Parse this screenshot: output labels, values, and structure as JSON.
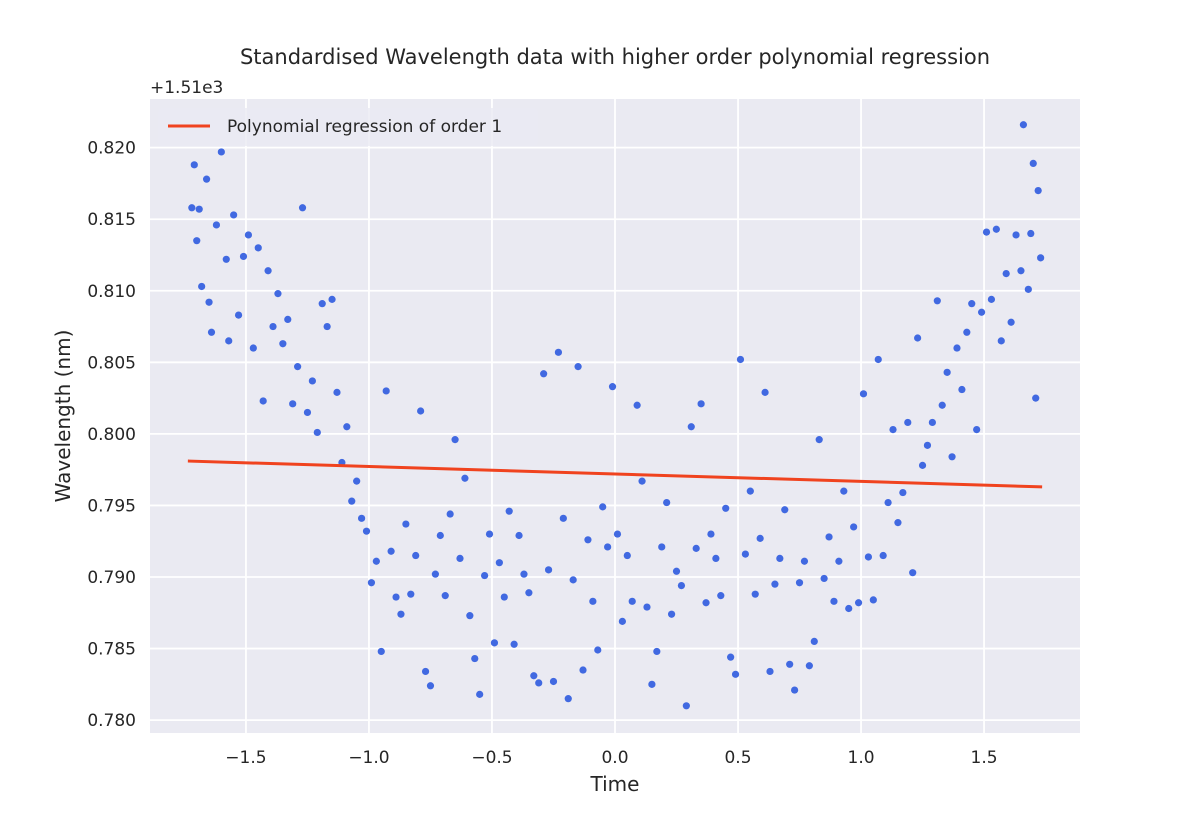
{
  "chart_data": {
    "type": "scatter",
    "title": "Standardised Wavelength data with higher order polynomial regression",
    "xlabel": "Time",
    "ylabel": "Wavelength (nm)",
    "y_offset_label": "+1.51e3",
    "xlim": [
      -1.89,
      1.89
    ],
    "ylim": [
      0.7791,
      0.8234
    ],
    "xticks": [
      -1.5,
      -1.0,
      -0.5,
      0.0,
      0.5,
      1.0,
      1.5
    ],
    "xtick_labels": [
      "−1.5",
      "−1.0",
      "−0.5",
      "0.0",
      "0.5",
      "1.0",
      "1.5"
    ],
    "yticks": [
      0.78,
      0.785,
      0.79,
      0.795,
      0.8,
      0.805,
      0.81,
      0.815,
      0.82
    ],
    "ytick_labels": [
      "0.780",
      "0.785",
      "0.790",
      "0.795",
      "0.800",
      "0.805",
      "0.810",
      "0.815",
      "0.820"
    ],
    "grid": true,
    "legend_position": "top-left",
    "series": [
      {
        "name": "",
        "kind": "scatter",
        "color": "#4169E1",
        "points": [
          [
            -1.72,
            0.8158
          ],
          [
            -1.71,
            0.8188
          ],
          [
            -1.7,
            0.8135
          ],
          [
            -1.69,
            0.8157
          ],
          [
            -1.68,
            0.8103
          ],
          [
            -1.66,
            0.8178
          ],
          [
            -1.65,
            0.8092
          ],
          [
            -1.64,
            0.8071
          ],
          [
            -1.62,
            0.8146
          ],
          [
            -1.6,
            0.8197
          ],
          [
            -1.58,
            0.8122
          ],
          [
            -1.57,
            0.8065
          ],
          [
            -1.55,
            0.8153
          ],
          [
            -1.53,
            0.8083
          ],
          [
            -1.51,
            0.8124
          ],
          [
            -1.49,
            0.8139
          ],
          [
            -1.47,
            0.806
          ],
          [
            -1.45,
            0.813
          ],
          [
            -1.43,
            0.8023
          ],
          [
            -1.41,
            0.8114
          ],
          [
            -1.39,
            0.8075
          ],
          [
            -1.37,
            0.8098
          ],
          [
            -1.35,
            0.8063
          ],
          [
            -1.33,
            0.808
          ],
          [
            -1.31,
            0.8021
          ],
          [
            -1.29,
            0.8047
          ],
          [
            -1.27,
            0.8158
          ],
          [
            -1.25,
            0.8015
          ],
          [
            -1.23,
            0.8037
          ],
          [
            -1.21,
            0.8001
          ],
          [
            -1.19,
            0.8091
          ],
          [
            -1.17,
            0.8075
          ],
          [
            -1.15,
            0.8094
          ],
          [
            -1.13,
            0.8029
          ],
          [
            -1.11,
            0.798
          ],
          [
            -1.09,
            0.8005
          ],
          [
            -1.07,
            0.7953
          ],
          [
            -1.05,
            0.7967
          ],
          [
            -1.03,
            0.7941
          ],
          [
            -1.01,
            0.7932
          ],
          [
            -0.99,
            0.7896
          ],
          [
            -0.97,
            0.7911
          ],
          [
            -0.95,
            0.7848
          ],
          [
            -0.93,
            0.803
          ],
          [
            -0.91,
            0.7918
          ],
          [
            -0.89,
            0.7886
          ],
          [
            -0.87,
            0.7874
          ],
          [
            -0.85,
            0.7937
          ],
          [
            -0.83,
            0.7888
          ],
          [
            -0.81,
            0.7915
          ],
          [
            -0.79,
            0.8016
          ],
          [
            -0.77,
            0.7834
          ],
          [
            -0.75,
            0.7824
          ],
          [
            -0.73,
            0.7902
          ],
          [
            -0.71,
            0.7929
          ],
          [
            -0.69,
            0.7887
          ],
          [
            -0.67,
            0.7944
          ],
          [
            -0.65,
            0.7996
          ],
          [
            -0.63,
            0.7913
          ],
          [
            -0.61,
            0.7969
          ],
          [
            -0.59,
            0.7873
          ],
          [
            -0.57,
            0.7843
          ],
          [
            -0.55,
            0.7818
          ],
          [
            -0.53,
            0.7901
          ],
          [
            -0.51,
            0.793
          ],
          [
            -0.49,
            0.7854
          ],
          [
            -0.47,
            0.791
          ],
          [
            -0.45,
            0.7886
          ],
          [
            -0.43,
            0.7946
          ],
          [
            -0.41,
            0.7853
          ],
          [
            -0.39,
            0.7929
          ],
          [
            -0.37,
            0.7902
          ],
          [
            -0.35,
            0.7889
          ],
          [
            -0.33,
            0.7831
          ],
          [
            -0.31,
            0.7826
          ],
          [
            -0.29,
            0.8042
          ],
          [
            -0.27,
            0.7905
          ],
          [
            -0.25,
            0.7827
          ],
          [
            -0.23,
            0.8057
          ],
          [
            -0.21,
            0.7941
          ],
          [
            -0.19,
            0.7815
          ],
          [
            -0.17,
            0.7898
          ],
          [
            -0.15,
            0.8047
          ],
          [
            -0.13,
            0.7835
          ],
          [
            -0.11,
            0.7926
          ],
          [
            -0.09,
            0.7883
          ],
          [
            -0.07,
            0.7849
          ],
          [
            -0.05,
            0.7949
          ],
          [
            -0.03,
            0.7921
          ],
          [
            -0.01,
            0.8033
          ],
          [
            0.01,
            0.793
          ],
          [
            0.03,
            0.7869
          ],
          [
            0.05,
            0.7915
          ],
          [
            0.07,
            0.7883
          ],
          [
            0.09,
            0.802
          ],
          [
            0.11,
            0.7967
          ],
          [
            0.13,
            0.7879
          ],
          [
            0.15,
            0.7825
          ],
          [
            0.17,
            0.7848
          ],
          [
            0.19,
            0.7921
          ],
          [
            0.21,
            0.7952
          ],
          [
            0.23,
            0.7874
          ],
          [
            0.25,
            0.7904
          ],
          [
            0.27,
            0.7894
          ],
          [
            0.29,
            0.781
          ],
          [
            0.31,
            0.8005
          ],
          [
            0.33,
            0.792
          ],
          [
            0.35,
            0.8021
          ],
          [
            0.37,
            0.7882
          ],
          [
            0.39,
            0.793
          ],
          [
            0.41,
            0.7913
          ],
          [
            0.43,
            0.7887
          ],
          [
            0.45,
            0.7948
          ],
          [
            0.47,
            0.7844
          ],
          [
            0.49,
            0.7832
          ],
          [
            0.51,
            0.8052
          ],
          [
            0.53,
            0.7916
          ],
          [
            0.55,
            0.796
          ],
          [
            0.57,
            0.7888
          ],
          [
            0.59,
            0.7927
          ],
          [
            0.61,
            0.8029
          ],
          [
            0.63,
            0.7834
          ],
          [
            0.65,
            0.7895
          ],
          [
            0.67,
            0.7913
          ],
          [
            0.69,
            0.7947
          ],
          [
            0.71,
            0.7839
          ],
          [
            0.73,
            0.7821
          ],
          [
            0.75,
            0.7896
          ],
          [
            0.77,
            0.7911
          ],
          [
            0.79,
            0.7838
          ],
          [
            0.81,
            0.7855
          ],
          [
            0.83,
            0.7996
          ],
          [
            0.85,
            0.7899
          ],
          [
            0.87,
            0.7928
          ],
          [
            0.89,
            0.7883
          ],
          [
            0.91,
            0.7911
          ],
          [
            0.93,
            0.796
          ],
          [
            0.95,
            0.7878
          ],
          [
            0.97,
            0.7935
          ],
          [
            0.99,
            0.7882
          ],
          [
            1.01,
            0.8028
          ],
          [
            1.03,
            0.7914
          ],
          [
            1.05,
            0.7884
          ],
          [
            1.07,
            0.8052
          ],
          [
            1.09,
            0.7915
          ],
          [
            1.11,
            0.7952
          ],
          [
            1.13,
            0.8003
          ],
          [
            1.15,
            0.7938
          ],
          [
            1.17,
            0.7959
          ],
          [
            1.19,
            0.8008
          ],
          [
            1.21,
            0.7903
          ],
          [
            1.23,
            0.8067
          ],
          [
            1.25,
            0.7978
          ],
          [
            1.27,
            0.7992
          ],
          [
            1.29,
            0.8008
          ],
          [
            1.31,
            0.8093
          ],
          [
            1.33,
            0.802
          ],
          [
            1.35,
            0.8043
          ],
          [
            1.37,
            0.7984
          ],
          [
            1.39,
            0.806
          ],
          [
            1.41,
            0.8031
          ],
          [
            1.43,
            0.8071
          ],
          [
            1.45,
            0.8091
          ],
          [
            1.47,
            0.8003
          ],
          [
            1.49,
            0.8085
          ],
          [
            1.51,
            0.8141
          ],
          [
            1.53,
            0.8094
          ],
          [
            1.55,
            0.8143
          ],
          [
            1.57,
            0.8065
          ],
          [
            1.59,
            0.8112
          ],
          [
            1.61,
            0.8078
          ],
          [
            1.63,
            0.8139
          ],
          [
            1.65,
            0.8114
          ],
          [
            1.66,
            0.8216
          ],
          [
            1.68,
            0.8101
          ],
          [
            1.69,
            0.814
          ],
          [
            1.7,
            0.8189
          ],
          [
            1.71,
            0.8025
          ],
          [
            1.72,
            0.817
          ],
          [
            1.73,
            0.8123
          ]
        ]
      },
      {
        "name": "Polynomial regression of order 1",
        "kind": "line",
        "color": "#F0431F",
        "x": [
          -1.73,
          1.73
        ],
        "y": [
          0.7981,
          0.7963
        ]
      }
    ]
  }
}
